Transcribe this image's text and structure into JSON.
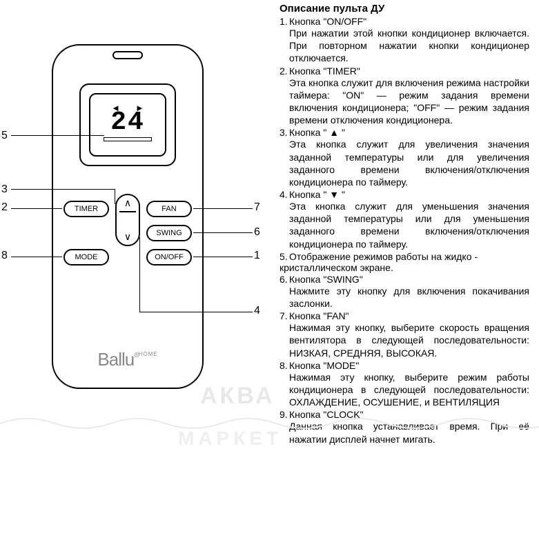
{
  "remote": {
    "display_value": "24",
    "brand": "Ballu",
    "brand_series": "HOME",
    "buttons": {
      "timer": "TIMER",
      "fan": "FAN",
      "swing": "SWING",
      "mode": "MODE",
      "onoff": "ON/OFF",
      "up_glyph": "∧",
      "down_glyph": "∨",
      "lcd_left": "◄",
      "lcd_right": "►"
    },
    "colors": {
      "stroke": "#000000",
      "background": "#ffffff",
      "logo": "#888888"
    }
  },
  "callouts": {
    "c1": "1",
    "c2": "2",
    "c3": "3",
    "c4": "4",
    "c5": "5",
    "c6": "6",
    "c7": "7",
    "c8": "8"
  },
  "text": {
    "heading": "Описание пульта ДУ",
    "items": [
      {
        "n": "1.",
        "title": "Кнопка \"ON/OFF\"",
        "body": "При нажатии этой кнопки кондиционер включается. При повторном нажатии кнопки кондиционер отключается."
      },
      {
        "n": "2.",
        "title": "Кнопка \"TIMER\"",
        "body": "Эта кнопка служит для включения режима настройки таймера: \"ON\" — режим задания времени включения кондиционера; \"OFF\" — режим задания времени отключения кондиционера."
      },
      {
        "n": "3.",
        "title": "Кнопка \" ▲ \"",
        "body": "Эта кнопка служит для увеличения значения заданной температуры или для увеличения заданного времени включения/отключения кондиционера по таймеру."
      },
      {
        "n": "4.",
        "title": "Кнопка \" ▼ \"",
        "body": "Эта кнопка служит для уменьшения значения заданной температуры или для уменьшения заданного времени включения/отключения кондиционера по таймеру."
      },
      {
        "n": "5.",
        "title": "Отображение режимов работы на жидко - кристаллическом экране.",
        "body": ""
      },
      {
        "n": "6.",
        "title": "Кнопка \"SWING\"",
        "body": "Нажмите эту кнопку для включения покачивания заслонки."
      },
      {
        "n": "7.",
        "title": "Кнопка \"FAN\"",
        "body": "Нажимая эту кнопку, выберите скорость вращения вентилятора в следующей последовательности: НИЗКАЯ, СРЕДНЯЯ, ВЫСОКАЯ."
      },
      {
        "n": "8.",
        "title": "Кнопка \"MODE\"",
        "body": "Нажимая эту кнопку, выберите режим работы кондиционера в следующей последовательности: ОХЛАЖДЕНИЕ, ОСУШЕНИЕ, и ВЕНТИЛЯЦИЯ"
      },
      {
        "n": "9.",
        "title": "Кнопка \"CLOCK\"",
        "body": "Данная кнопка устанавливает время. При её нажатии дисплей начнет мигать."
      }
    ]
  },
  "watermark": {
    "line1": "АКВА",
    "line2": "МАРКЕТ"
  }
}
